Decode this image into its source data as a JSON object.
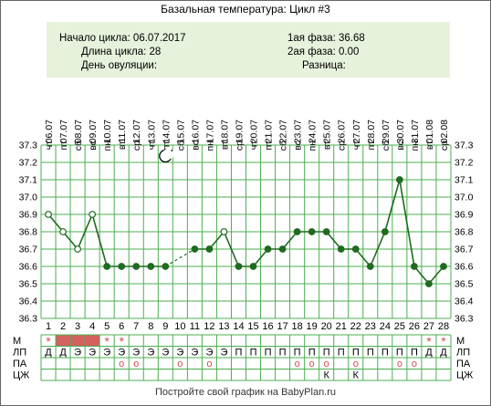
{
  "header": {
    "title": "Базальная температура: Цикл #3",
    "cycle_start": "Начало цикла: 06.07.2017",
    "cycle_length": "Длина цикла: 28",
    "ovulation_day": "День овуляции:",
    "phase1": "1ая фаза: 36.68",
    "phase2": "2ая фаза: 0.00",
    "difference": "Разница:"
  },
  "footer": "Постройте свой график на BabyPlan.ru",
  "chart_data": {
    "type": "line",
    "ylim": [
      36.3,
      37.3
    ],
    "y_ticks": [
      "36.3",
      "36.4",
      "36.5",
      "36.6",
      "36.7",
      "36.8",
      "36.9",
      "37.0",
      "37.1",
      "37.2",
      "37.3"
    ],
    "x": [
      1,
      2,
      3,
      4,
      5,
      6,
      7,
      8,
      9,
      10,
      11,
      12,
      13,
      14,
      15,
      16,
      17,
      18,
      19,
      20,
      21,
      22,
      23,
      24,
      25,
      26,
      27,
      28
    ],
    "dates": [
      "06.07",
      "07.07",
      "08.07",
      "09.07",
      "10.07",
      "11.07",
      "12.07",
      "13.07",
      "14.07",
      "15.07",
      "16.07",
      "17.07",
      "18.07",
      "19.07",
      "20.07",
      "21.07",
      "22.07",
      "23.07",
      "24.07",
      "25.07",
      "26.07",
      "27.07",
      "28.07",
      "29.07",
      "30.07",
      "31.07",
      "01.08",
      "02.08"
    ],
    "weekdays": [
      "чт",
      "пт",
      "сб",
      "вс",
      "пн",
      "вт",
      "ср",
      "чт",
      "пт",
      "сб",
      "вс",
      "пн",
      "вт",
      "ср",
      "чт",
      "пт",
      "сб",
      "вс",
      "пн",
      "вт",
      "ср",
      "чт",
      "пт",
      "сб",
      "вс",
      "пн",
      "вт",
      "ср"
    ],
    "values": [
      36.9,
      36.8,
      36.7,
      36.9,
      36.6,
      36.6,
      36.6,
      36.6,
      36.6,
      null,
      36.7,
      36.7,
      36.8,
      36.6,
      36.6,
      36.7,
      36.7,
      36.8,
      36.8,
      36.8,
      36.7,
      36.7,
      36.6,
      36.8,
      37.1,
      36.6,
      36.5,
      36.6
    ],
    "hollow_points": [
      1,
      2,
      3,
      4,
      13
    ],
    "dashed_segment": [
      9,
      11
    ],
    "moon_day": 9,
    "series_color": "#1f6b1f",
    "grid": true,
    "grid_color": "#4caf50",
    "rows": [
      {
        "label": "М",
        "cells": [
          "*",
          "",
          "",
          "",
          "*",
          "*",
          "",
          "",
          "",
          "",
          "",
          "",
          "",
          "",
          "",
          "",
          "",
          "",
          "",
          "",
          "",
          "",
          "",
          "",
          "",
          "",
          "*",
          "*"
        ],
        "fill_days": [
          2,
          3,
          4
        ]
      },
      {
        "label": "ЛП",
        "cells": [
          "Д",
          "Д",
          "Э",
          "Э",
          "Э",
          "Э",
          "Э",
          "Э",
          "Э",
          "Э",
          "Э",
          "Э",
          "Э",
          "П",
          "П",
          "П",
          "П",
          "П",
          "П",
          "П",
          "П",
          "П",
          "П",
          "П",
          "П",
          "П",
          "Д",
          "Д"
        ],
        "fill_days": []
      },
      {
        "label": "ПА",
        "cells": [
          "",
          "",
          "",
          "",
          "",
          "о",
          "о",
          "",
          "",
          "о",
          "",
          "о",
          "",
          "",
          "",
          "",
          "",
          "о",
          "о",
          "о",
          "",
          "о",
          "",
          "",
          "о",
          "о",
          "",
          ""
        ],
        "fill_days": []
      },
      {
        "label": "ЦЖ",
        "cells": [
          "",
          "",
          "",
          "",
          "",
          "",
          "",
          "",
          "",
          "",
          "",
          "",
          "",
          "",
          "",
          "",
          "",
          "",
          "",
          "К",
          "",
          "К",
          "",
          "",
          "",
          "",
          "",
          ""
        ],
        "fill_days": []
      }
    ],
    "colors": {
      "mark": "#d05050",
      "fill": "#d46060"
    }
  }
}
